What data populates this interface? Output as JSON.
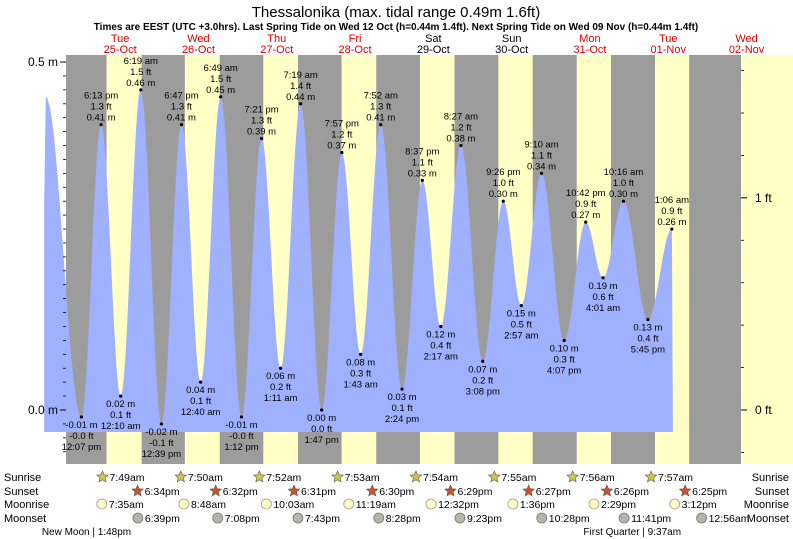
{
  "chart_data": {
    "type": "area",
    "title": "Thessalonika (max. tidal range 0.49m 1.6ft)",
    "subtitle": "Times are EEST (UTC +3.0hrs). Last Spring Tide on Wed 12 Oct (h=0.44m 1.4ft). Next Spring Tide on Wed 09 Nov (h=0.44m 1.4ft)",
    "ylim": [
      -0.07,
      0.5
    ],
    "xlim": [
      -0.5,
      8.0
    ],
    "left_ticks": [
      {
        "value": 0.5,
        "label": "0.5 m"
      },
      {
        "value": 0.0,
        "label": "0.0 m"
      }
    ],
    "right_ticks": [
      {
        "value": 0.3048,
        "label": "1 ft"
      },
      {
        "value": 0.0,
        "label": "0 ft"
      }
    ],
    "days": [
      {
        "dow": "Tue",
        "date": "25-Oct",
        "weekend": false
      },
      {
        "dow": "Wed",
        "date": "26-Oct",
        "weekend": false
      },
      {
        "dow": "Thu",
        "date": "27-Oct",
        "weekend": false
      },
      {
        "dow": "Fri",
        "date": "28-Oct",
        "weekend": false
      },
      {
        "dow": "Sat",
        "date": "29-Oct",
        "weekend": true
      },
      {
        "dow": "Sun",
        "date": "30-Oct",
        "weekend": true
      },
      {
        "dow": "Mon",
        "date": "31-Oct",
        "weekend": false
      },
      {
        "dow": "Tue",
        "date": "01-Nov",
        "weekend": false
      },
      {
        "dow": "Wed",
        "date": "02-Nov",
        "weekend": false
      }
    ],
    "daylight": [
      {
        "sunrise": 0.326,
        "sunset": 0.774
      },
      {
        "sunrise": 1.326,
        "sunset": 1.772
      },
      {
        "sunrise": 2.328,
        "sunset": 2.771
      },
      {
        "sunrise": 3.328,
        "sunset": 3.771
      },
      {
        "sunrise": 4.329,
        "sunset": 4.77
      },
      {
        "sunrise": 5.33,
        "sunset": 5.769
      },
      {
        "sunrise": 6.331,
        "sunset": 6.768
      },
      {
        "sunrise": 7.331,
        "sunset": 7.767
      }
    ],
    "tides": [
      {
        "x": -0.45,
        "h": 0.45,
        "label": false
      },
      {
        "x": 0.005,
        "h": -0.01,
        "time": "12:07 pm",
        "m": "-0.01 m",
        "ft": "-0.0 ft",
        "type": "low"
      },
      {
        "x": 0.257,
        "h": 0.41,
        "time": "6:13 pm",
        "m": "0.41 m",
        "ft": "1.3 ft",
        "type": "high"
      },
      {
        "x": 0.507,
        "h": 0.02,
        "time": "12:10 am",
        "m": "0.02 m",
        "ft": "0.1 ft",
        "type": "low"
      },
      {
        "x": 0.763,
        "h": 0.46,
        "time": "6:19 am",
        "m": "0.46 m",
        "ft": "1.5 ft",
        "type": "high"
      },
      {
        "x": 1.027,
        "h": -0.02,
        "time": "12:39 pm",
        "m": "-0.02 m",
        "ft": "-0.1 ft",
        "type": "low"
      },
      {
        "x": 1.283,
        "h": 0.41,
        "time": "6:47 pm",
        "m": "0.41 m",
        "ft": "1.3 ft",
        "type": "high"
      },
      {
        "x": 1.528,
        "h": 0.04,
        "time": "12:40 am",
        "m": "0.04 m",
        "ft": "0.1 ft",
        "type": "low"
      },
      {
        "x": 1.784,
        "h": 0.45,
        "time": "6:49 am",
        "m": "0.45 m",
        "ft": "1.5 ft",
        "type": "high"
      },
      {
        "x": 2.05,
        "h": -0.01,
        "time": "1:12 pm",
        "m": "-0.01 m",
        "ft": "-0.0 ft",
        "type": "low"
      },
      {
        "x": 2.306,
        "h": 0.39,
        "time": "7:21 pm",
        "m": "0.39 m",
        "ft": "1.3 ft",
        "type": "high"
      },
      {
        "x": 2.549,
        "h": 0.06,
        "time": "1:11 am",
        "m": "0.06 m",
        "ft": "0.2 ft",
        "type": "low"
      },
      {
        "x": 2.805,
        "h": 0.44,
        "time": "7:19 am",
        "m": "0.44 m",
        "ft": "1.4 ft",
        "type": "high"
      },
      {
        "x": 3.074,
        "h": 0.0,
        "time": "1:47 pm",
        "m": "0.00 m",
        "ft": "0.0 ft",
        "type": "low"
      },
      {
        "x": 3.331,
        "h": 0.37,
        "time": "7:57 pm",
        "m": "0.37 m",
        "ft": "1.2 ft",
        "type": "high"
      },
      {
        "x": 3.572,
        "h": 0.08,
        "time": "1:43 am",
        "m": "0.08 m",
        "ft": "0.3 ft",
        "type": "low"
      },
      {
        "x": 3.828,
        "h": 0.41,
        "time": "7:52 am",
        "m": "0.41 m",
        "ft": "1.3 ft",
        "type": "high"
      },
      {
        "x": 4.1,
        "h": 0.03,
        "time": "2:24 pm",
        "m": "0.03 m",
        "ft": "0.1 ft",
        "type": "low"
      },
      {
        "x": 4.359,
        "h": 0.33,
        "time": "8:37 pm",
        "m": "0.33 m",
        "ft": "1.1 ft",
        "type": "high"
      },
      {
        "x": 4.595,
        "h": 0.12,
        "time": "2:17 am",
        "m": "0.12 m",
        "ft": "0.4 ft",
        "type": "low"
      },
      {
        "x": 4.852,
        "h": 0.38,
        "time": "8:27 am",
        "m": "0.38 m",
        "ft": "1.2 ft",
        "type": "high"
      },
      {
        "x": 5.131,
        "h": 0.07,
        "time": "3:08 pm",
        "m": "0.07 m",
        "ft": "0.2 ft",
        "type": "low"
      },
      {
        "x": 5.393,
        "h": 0.3,
        "time": "9:26 pm",
        "m": "0.30 m",
        "ft": "1.0 ft",
        "type": "high"
      },
      {
        "x": 5.623,
        "h": 0.15,
        "time": "2:57 am",
        "m": "0.15 m",
        "ft": "0.5 ft",
        "type": "low"
      },
      {
        "x": 5.882,
        "h": 0.34,
        "time": "9:10 am",
        "m": "0.34 m",
        "ft": "1.1 ft",
        "type": "high"
      },
      {
        "x": 6.171,
        "h": 0.1,
        "time": "4:07 pm",
        "m": "0.10 m",
        "ft": "0.3 ft",
        "type": "low"
      },
      {
        "x": 6.446,
        "h": 0.27,
        "time": "10:42 pm",
        "m": "0.27 m",
        "ft": "0.9 ft",
        "type": "high"
      },
      {
        "x": 6.667,
        "h": 0.19,
        "time": "4:01 am",
        "m": "0.19 m",
        "ft": "0.6 ft",
        "type": "low"
      },
      {
        "x": 6.928,
        "h": 0.3,
        "time": "10:16 am",
        "m": "0.30 m",
        "ft": "1.0 ft",
        "type": "high"
      },
      {
        "x": 7.24,
        "h": 0.13,
        "time": "5:45 pm",
        "m": "0.13 m",
        "ft": "0.4 ft",
        "type": "low"
      },
      {
        "x": 7.546,
        "h": 0.26,
        "time": "1:06 am",
        "m": "0.26 m",
        "ft": "0.9 ft",
        "type": "high"
      }
    ],
    "row_labels": {
      "sunrise": "Sunrise",
      "sunset": "Sunset",
      "moonrise": "Moonrise",
      "moonset": "Moonset"
    },
    "sunrise": [
      {
        "x": 0.326,
        "time": "7:49am"
      },
      {
        "x": 1.326,
        "time": "7:50am"
      },
      {
        "x": 2.328,
        "time": "7:52am"
      },
      {
        "x": 3.328,
        "time": "7:53am"
      },
      {
        "x": 4.329,
        "time": "7:54am"
      },
      {
        "x": 5.33,
        "time": "7:55am"
      },
      {
        "x": 6.331,
        "time": "7:56am"
      },
      {
        "x": 7.331,
        "time": "7:57am"
      }
    ],
    "sunset": [
      {
        "x": 0.774,
        "time": "6:34pm"
      },
      {
        "x": 1.772,
        "time": "6:32pm"
      },
      {
        "x": 2.771,
        "time": "6:31pm"
      },
      {
        "x": 3.771,
        "time": "6:30pm"
      },
      {
        "x": 4.77,
        "time": "6:29pm"
      },
      {
        "x": 5.769,
        "time": "6:27pm"
      },
      {
        "x": 6.768,
        "time": "6:26pm"
      },
      {
        "x": 7.767,
        "time": "6:25pm"
      }
    ],
    "moonrise": [
      {
        "x": 0.316,
        "time": "7:35am"
      },
      {
        "x": 1.366,
        "time": "8:48am"
      },
      {
        "x": 2.418,
        "time": "10:03am"
      },
      {
        "x": 3.471,
        "time": "11:19am"
      },
      {
        "x": 4.522,
        "time": "12:32pm"
      },
      {
        "x": 5.567,
        "time": "1:36pm"
      },
      {
        "x": 6.603,
        "time": "2:29pm"
      },
      {
        "x": 7.633,
        "time": "3:12pm"
      }
    ],
    "moonset": [
      {
        "x": 0.777,
        "time": "6:39pm"
      },
      {
        "x": 1.797,
        "time": "7:08pm"
      },
      {
        "x": 2.822,
        "time": "7:43pm"
      },
      {
        "x": 3.853,
        "time": "8:28pm"
      },
      {
        "x": 4.891,
        "time": "9:23pm"
      },
      {
        "x": 5.936,
        "time": "10:28pm"
      },
      {
        "x": 6.987,
        "time": "11:41pm"
      },
      {
        "x": 7.977,
        "time": "12:56am"
      }
    ],
    "moon_phases": [
      {
        "x": 0.07,
        "text": "New Moon | 1:48pm"
      },
      {
        "x": 7.04,
        "text": "First Quarter | 9:37am"
      }
    ]
  }
}
